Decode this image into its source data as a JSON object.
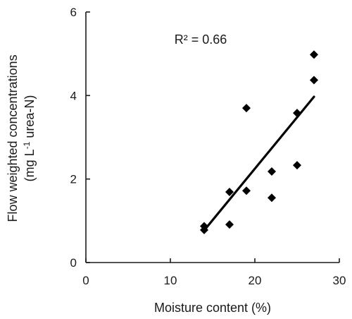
{
  "chart_data": {
    "type": "scatter",
    "xlabel": "Moisture content (%)",
    "ylabel_line1": "Flow weighted concentrations",
    "ylabel_line2_pre": "(mg L",
    "ylabel_line2_sup": "-1",
    "ylabel_line2_post": " urea-N)",
    "annotation": "R² = 0.66",
    "xlim": [
      0,
      30
    ],
    "ylim": [
      0,
      6
    ],
    "x_ticks": [
      0,
      10,
      20,
      30
    ],
    "y_ticks": [
      0,
      2,
      4,
      6
    ],
    "grid": false,
    "points": [
      {
        "x": 14,
        "y": 0.87
      },
      {
        "x": 14,
        "y": 0.78
      },
      {
        "x": 17,
        "y": 1.69
      },
      {
        "x": 17,
        "y": 0.91
      },
      {
        "x": 19,
        "y": 3.7
      },
      {
        "x": 19,
        "y": 1.72
      },
      {
        "x": 22,
        "y": 2.18
      },
      {
        "x": 22,
        "y": 1.55
      },
      {
        "x": 25,
        "y": 3.58
      },
      {
        "x": 25,
        "y": 2.33
      },
      {
        "x": 27,
        "y": 4.98
      },
      {
        "x": 27,
        "y": 4.37
      }
    ],
    "trendline": {
      "x": [
        14,
        27
      ],
      "y": [
        0.77,
        3.97
      ]
    },
    "marker_color": "#000000",
    "line_color": "#000000"
  }
}
